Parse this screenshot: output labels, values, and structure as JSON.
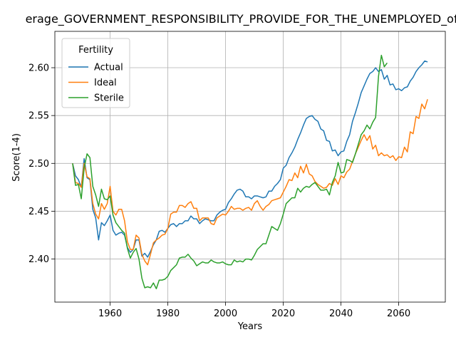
{
  "chart_data": {
    "type": "line",
    "title": "erage_GOVERNMENT_RESPONSIBILITY_PROVIDE_FOR_THE_UNEMPLOYED_of_W",
    "xlabel": "Years",
    "ylabel": "Score(1-4)",
    "legend_title": "Fertility",
    "legend": "upper left",
    "grid": true,
    "xlim": [
      1940.85,
      2076.15
    ],
    "ylim": [
      2.355,
      2.638
    ],
    "xticks": [
      1960,
      1980,
      2000,
      2020,
      2040,
      2060
    ],
    "yticks": [
      {
        "value": 2.4,
        "label": "2.40"
      },
      2.45,
      {
        "value": 2.5,
        "label": "2.50"
      },
      2.55,
      {
        "value": 2.6,
        "label": "2.60"
      }
    ],
    "x": [
      1947,
      1948,
      1949,
      1950,
      1951,
      1952,
      1953,
      1954,
      1955,
      1956,
      1957,
      1958,
      1959,
      1960,
      1961,
      1962,
      1963,
      1964,
      1965,
      1966,
      1967,
      1968,
      1969,
      1970,
      1971,
      1972,
      1973,
      1974,
      1975,
      1976,
      1977,
      1978,
      1979,
      1980,
      1981,
      1982,
      1983,
      1984,
      1985,
      1986,
      1987,
      1988,
      1989,
      1990,
      1991,
      1992,
      1993,
      1994,
      1995,
      1996,
      1997,
      1998,
      1999,
      2000,
      2001,
      2002,
      2003,
      2004,
      2005,
      2006,
      2007,
      2008,
      2009,
      2010,
      2011,
      2012,
      2013,
      2014,
      2015,
      2016,
      2017,
      2018,
      2019,
      2020,
      2021,
      2022,
      2023,
      2024,
      2025,
      2026,
      2027,
      2028,
      2029,
      2030,
      2031,
      2032,
      2033,
      2034,
      2035,
      2036,
      2037,
      2038,
      2039,
      2040,
      2041,
      2042,
      2043,
      2044,
      2045,
      2046,
      2047,
      2048,
      2049,
      2050,
      2051,
      2052,
      2053,
      2054,
      2055,
      2056,
      2057,
      2058,
      2059,
      2060,
      2061,
      2062,
      2063,
      2064,
      2065,
      2066,
      2067,
      2068,
      2069,
      2070
    ],
    "series": [
      {
        "name": "Actual",
        "color": "#1f77b4",
        "values": [
          2.5,
          2.487,
          2.483,
          2.475,
          2.505,
          2.485,
          2.483,
          2.452,
          2.443,
          2.42,
          2.438,
          2.435,
          2.44,
          2.446,
          2.43,
          2.425,
          2.427,
          2.428,
          2.425,
          2.412,
          2.407,
          2.41,
          2.42,
          2.42,
          2.403,
          2.406,
          2.402,
          2.408,
          2.415,
          2.42,
          2.429,
          2.43,
          2.428,
          2.432,
          2.436,
          2.437,
          2.434,
          2.437,
          2.437,
          2.44,
          2.44,
          2.445,
          2.442,
          2.442,
          2.437,
          2.44,
          2.442,
          2.441,
          2.44,
          2.44,
          2.446,
          2.449,
          2.451,
          2.452,
          2.459,
          2.463,
          2.468,
          2.472,
          2.473,
          2.471,
          2.465,
          2.465,
          2.463,
          2.466,
          2.466,
          2.465,
          2.464,
          2.465,
          2.471,
          2.471,
          2.476,
          2.479,
          2.483,
          2.495,
          2.498,
          2.506,
          2.511,
          2.517,
          2.525,
          2.532,
          2.54,
          2.547,
          2.549,
          2.55,
          2.546,
          2.544,
          2.536,
          2.534,
          2.524,
          2.523,
          2.513,
          2.514,
          2.508,
          2.512,
          2.513,
          2.523,
          2.53,
          2.544,
          2.553,
          2.563,
          2.574,
          2.581,
          2.588,
          2.594,
          2.596,
          2.6,
          2.596,
          2.598,
          2.588,
          2.592,
          2.582,
          2.583,
          2.577,
          2.578,
          2.576,
          2.579,
          2.58,
          2.586,
          2.59,
          2.596,
          2.6,
          2.603,
          2.607,
          2.606
        ]
      },
      {
        "name": "Ideal",
        "color": "#ff7f0e",
        "values": [
          2.5,
          2.48,
          2.479,
          2.475,
          2.5,
          2.486,
          2.484,
          2.458,
          2.447,
          2.442,
          2.458,
          2.452,
          2.458,
          2.476,
          2.45,
          2.446,
          2.452,
          2.452,
          2.44,
          2.418,
          2.41,
          2.41,
          2.425,
          2.422,
          2.405,
          2.398,
          2.394,
          2.405,
          2.417,
          2.42,
          2.422,
          2.425,
          2.426,
          2.432,
          2.447,
          2.449,
          2.449,
          2.456,
          2.456,
          2.454,
          2.458,
          2.46,
          2.453,
          2.453,
          2.44,
          2.443,
          2.443,
          2.443,
          2.437,
          2.436,
          2.443,
          2.445,
          2.447,
          2.446,
          2.45,
          2.455,
          2.452,
          2.453,
          2.453,
          2.451,
          2.453,
          2.454,
          2.451,
          2.458,
          2.461,
          2.455,
          2.451,
          2.455,
          2.457,
          2.461,
          2.462,
          2.463,
          2.464,
          2.47,
          2.476,
          2.483,
          2.482,
          2.49,
          2.485,
          2.497,
          2.49,
          2.499,
          2.489,
          2.487,
          2.481,
          2.478,
          2.476,
          2.474,
          2.475,
          2.479,
          2.477,
          2.484,
          2.478,
          2.487,
          2.485,
          2.491,
          2.494,
          2.502,
          2.51,
          2.517,
          2.524,
          2.53,
          2.524,
          2.529,
          2.515,
          2.519,
          2.508,
          2.511,
          2.508,
          2.509,
          2.506,
          2.508,
          2.503,
          2.507,
          2.506,
          2.517,
          2.512,
          2.533,
          2.531,
          2.549,
          2.547,
          2.562,
          2.557,
          2.567
        ]
      },
      {
        "name": "Sterile",
        "color": "#2ca02c",
        "values": [
          2.5,
          2.477,
          2.478,
          2.463,
          2.495,
          2.51,
          2.506,
          2.476,
          2.467,
          2.455,
          2.473,
          2.463,
          2.462,
          2.466,
          2.446,
          2.438,
          2.434,
          2.43,
          2.427,
          2.411,
          2.401,
          2.407,
          2.411,
          2.4,
          2.38,
          2.37,
          2.371,
          2.37,
          2.375,
          2.369,
          2.378,
          2.378,
          2.379,
          2.382,
          2.388,
          2.391,
          2.394,
          2.401,
          2.402,
          2.402,
          2.405,
          2.401,
          2.398,
          2.393,
          2.395,
          2.397,
          2.396,
          2.396,
          2.399,
          2.397,
          2.396,
          2.396,
          2.397,
          2.395,
          2.394,
          2.394,
          2.399,
          2.397,
          2.398,
          2.397,
          2.4,
          2.4,
          2.399,
          2.404,
          2.41,
          2.413,
          2.416,
          2.416,
          2.425,
          2.434,
          2.432,
          2.43,
          2.437,
          2.447,
          2.458,
          2.461,
          2.464,
          2.464,
          2.474,
          2.47,
          2.474,
          2.476,
          2.475,
          2.478,
          2.48,
          2.476,
          2.472,
          2.472,
          2.473,
          2.467,
          2.48,
          2.487,
          2.501,
          2.49,
          2.491,
          2.504,
          2.503,
          2.501,
          2.51,
          2.52,
          2.53,
          2.534,
          2.54,
          2.536,
          2.543,
          2.548,
          2.591,
          2.613,
          2.601,
          2.605,
          null,
          null,
          null,
          null,
          null,
          null,
          null,
          null,
          null,
          null,
          null,
          null,
          null,
          null
        ]
      }
    ]
  }
}
